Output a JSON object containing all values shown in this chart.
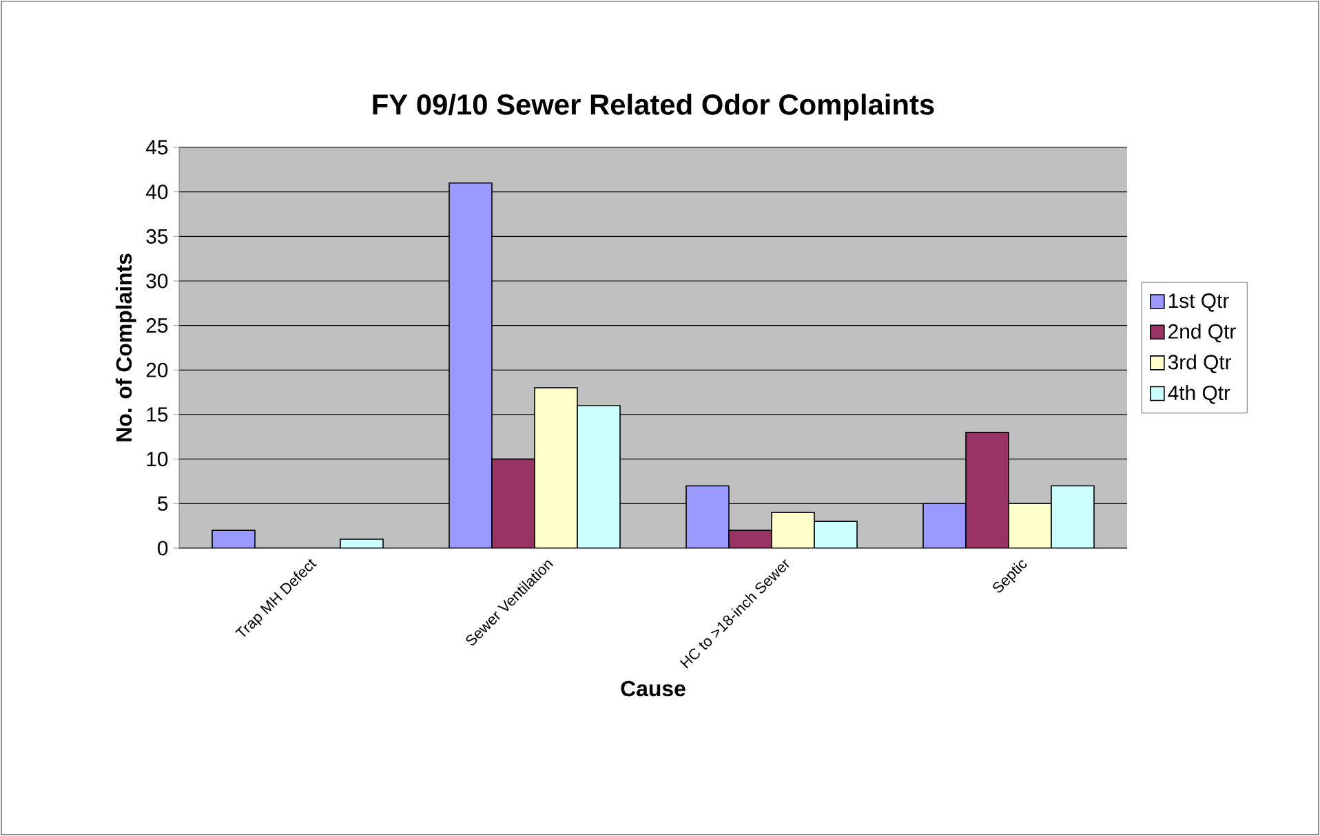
{
  "chart_data": {
    "type": "bar",
    "title": "FY 09/10 Sewer Related Odor Complaints",
    "xlabel": "Cause",
    "ylabel": "No. of Complaints",
    "categories": [
      "Trap MH Defect",
      "Sewer Ventilation",
      "HC to >18-inch Sewer",
      "Septic"
    ],
    "series": [
      {
        "name": "1st Qtr",
        "color": "#9999ff",
        "values": [
          2,
          41,
          7,
          5
        ]
      },
      {
        "name": "2nd Qtr",
        "color": "#993366",
        "values": [
          0,
          10,
          2,
          13
        ]
      },
      {
        "name": "3rd Qtr",
        "color": "#ffffcc",
        "values": [
          0,
          18,
          4,
          5
        ]
      },
      {
        "name": "4th Qtr",
        "color": "#ccffff",
        "values": [
          1,
          16,
          3,
          7
        ]
      }
    ],
    "ylim": [
      0,
      45
    ],
    "yticks": [
      0,
      5,
      10,
      15,
      20,
      25,
      30,
      35,
      40,
      45
    ],
    "grid": "y",
    "legend": "right"
  }
}
